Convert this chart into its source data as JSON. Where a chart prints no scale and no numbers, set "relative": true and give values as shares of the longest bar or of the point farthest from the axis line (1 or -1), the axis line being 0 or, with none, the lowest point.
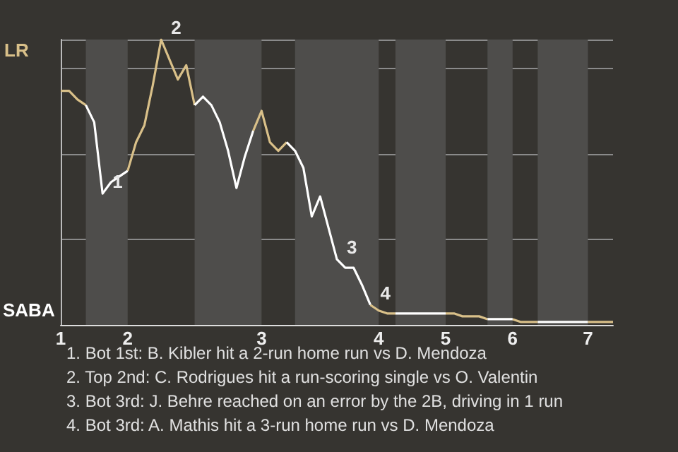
{
  "chart_data": {
    "type": "line",
    "relative": true,
    "categories": [
      "1",
      null,
      null,
      null,
      null,
      null,
      null,
      null,
      "2",
      null,
      null,
      null,
      null,
      null,
      null,
      null,
      null,
      null,
      null,
      null,
      null,
      null,
      null,
      null,
      "3",
      null,
      null,
      null,
      null,
      null,
      null,
      null,
      null,
      null,
      null,
      null,
      null,
      null,
      "4",
      null,
      null,
      null,
      null,
      null,
      null,
      null,
      "5",
      null,
      null,
      null,
      null,
      null,
      null,
      null,
      "6",
      null,
      null,
      null,
      null,
      null,
      null,
      null,
      null,
      "7",
      null,
      null,
      null
    ],
    "series": [
      {
        "color": "#d9c089",
        "values": [
          0.82,
          0.82,
          0.79,
          0.77,
          null,
          null,
          null,
          null,
          0.54,
          0.64,
          0.7,
          0.84,
          1,
          0.93,
          0.86,
          0.91,
          0.77,
          null,
          null,
          null,
          null,
          null,
          null,
          0.68,
          0.75,
          0.64,
          0.61,
          0.64,
          null,
          null,
          null,
          null,
          null,
          null,
          null,
          null,
          null,
          0.07,
          0.05,
          0.04,
          0.04,
          null,
          null,
          null,
          null,
          null,
          0.04,
          0.04,
          0.03,
          0.03,
          0.03,
          0.02,
          null,
          null,
          0.02,
          0.01,
          0.01,
          0.01,
          null,
          null,
          null,
          null,
          null,
          0.01,
          0.01,
          0.01,
          0.01
        ]
      },
      {
        "color": "#ffffff",
        "values": [
          null,
          null,
          null,
          0.77,
          0.71,
          0.46,
          0.5,
          0.52,
          0.54,
          null,
          null,
          null,
          null,
          null,
          null,
          null,
          0.77,
          0.8,
          0.77,
          0.71,
          0.61,
          0.48,
          0.59,
          0.68,
          null,
          null,
          null,
          0.64,
          0.61,
          0.55,
          0.38,
          0.45,
          0.34,
          0.23,
          0.2,
          0.2,
          0.14,
          0.07,
          null,
          null,
          0.04,
          0.04,
          0.04,
          0.04,
          0.04,
          0.04,
          0.04,
          null,
          null,
          null,
          null,
          0.02,
          0.02,
          0.02,
          0.02,
          null,
          null,
          0.01,
          0.01,
          0.01,
          0.01,
          0.01,
          0.01,
          0.01,
          null,
          null,
          null
        ]
      }
    ],
    "grid": "y",
    "annotations": [
      "LR",
      "SABA",
      "1",
      "2",
      "3",
      "4",
      "1. Bot 1st: B. Kibler hit a 2-run home run vs D. Mendoza",
      "2. Top 2nd: C. Rodrigues hit a run-scoring single vs O. Valentin",
      "3. Bot 3rd: J. Behre reached on an error by the 2B, driving in 1 run",
      "4. Bot 3rd: A. Mathis hit a 3-run home run vs D. Mendoza"
    ]
  }
}
